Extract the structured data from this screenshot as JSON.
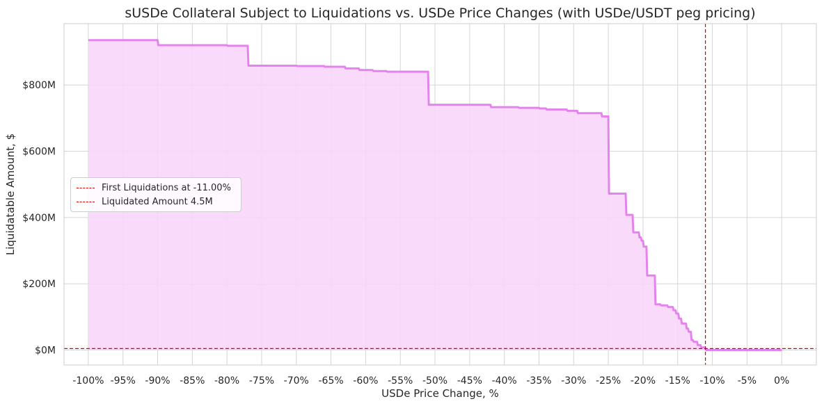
{
  "chart_data": {
    "type": "area",
    "title": "sUSDe Collateral Subject to Liquidations vs. USDe Price Changes (with USDe/USDT peg pricing)",
    "xlabel": "USDe Price Change, %",
    "ylabel": "Liquidatable Amount, $",
    "xlim": [
      -103.5,
      5
    ],
    "ylim": [
      -45,
      985
    ],
    "x_ticks": [
      -100,
      -95,
      -90,
      -85,
      -80,
      -75,
      -70,
      -65,
      -60,
      -55,
      -50,
      -45,
      -40,
      -35,
      -30,
      -25,
      -20,
      -15,
      -10,
      -5,
      0
    ],
    "x_tick_labels": [
      "-100%",
      "-95%",
      "-90%",
      "-85%",
      "-80%",
      "-75%",
      "-70%",
      "-65%",
      "-60%",
      "-55%",
      "-50%",
      "-45%",
      "-40%",
      "-35%",
      "-30%",
      "-25%",
      "-20%",
      "-15%",
      "-10%",
      "-5%",
      "0%"
    ],
    "y_ticks": [
      0,
      200,
      400,
      600,
      800
    ],
    "y_tick_labels": [
      "$0M",
      "$200M",
      "$400M",
      "$600M",
      "$800M"
    ],
    "y_unit": "$M",
    "grid": true,
    "line_color": "#e384ec",
    "fill_color": "#fad6f9",
    "ref_color": "#e00000",
    "series": [
      {
        "values_are": "liquidatable amount in $M, step function",
        "x": [
          -100,
          -90,
          -89.9,
          -80,
          -79.9,
          -77,
          -76.9,
          -70,
          -69.9,
          -66,
          -65.9,
          -63,
          -62.9,
          -61,
          -60.9,
          -59,
          -58.9,
          -57,
          -56.9,
          -51,
          -50.9,
          -42,
          -41.9,
          -38,
          -37.9,
          -35,
          -34.9,
          -34,
          -33.9,
          -31,
          -30.9,
          -29.5,
          -29.4,
          -26,
          -25.9,
          -25,
          -24.9,
          -22.5,
          -22.4,
          -21.5,
          -21.4,
          -20.6,
          -20.5,
          -20.3,
          -20.2,
          -20,
          -19.9,
          -19.5,
          -19.4,
          -18.3,
          -18.2,
          -17.5,
          -17.4,
          -16.5,
          -16.4,
          -15.7,
          -15.6,
          -15.3,
          -15.2,
          -14.9,
          -14.8,
          -14.5,
          -14.4,
          -13.8,
          -13.7,
          -13.5,
          -13.4,
          -13.1,
          -13,
          -12.8,
          -12.7,
          -12.2,
          -12.1,
          -11.7,
          -11.6,
          -11.1,
          -11,
          -10.9,
          -10,
          -5,
          0
        ],
        "values": [
          935,
          935,
          920,
          920,
          918,
          918,
          858,
          858,
          857,
          857,
          855,
          855,
          850,
          850,
          845,
          845,
          842,
          842,
          840,
          840,
          740,
          740,
          733,
          733,
          731,
          731,
          729,
          729,
          726,
          726,
          722,
          722,
          715,
          715,
          705,
          705,
          472,
          472,
          408,
          408,
          355,
          355,
          340,
          340,
          330,
          330,
          312,
          312,
          225,
          225,
          138,
          138,
          135,
          135,
          130,
          130,
          120,
          120,
          110,
          110,
          95,
          95,
          80,
          80,
          65,
          65,
          55,
          55,
          30,
          30,
          25,
          25,
          15,
          15,
          8,
          8,
          4.5,
          0,
          0,
          0,
          0
        ]
      }
    ],
    "reference_lines": [
      {
        "orientation": "vertical",
        "x": -11
      },
      {
        "orientation": "horizontal",
        "y": 4.5
      }
    ],
    "legend": {
      "placement": "center-left",
      "entries": [
        "First Liquidations at -11.00%",
        "Liquidated Amount 4.5M"
      ]
    }
  }
}
